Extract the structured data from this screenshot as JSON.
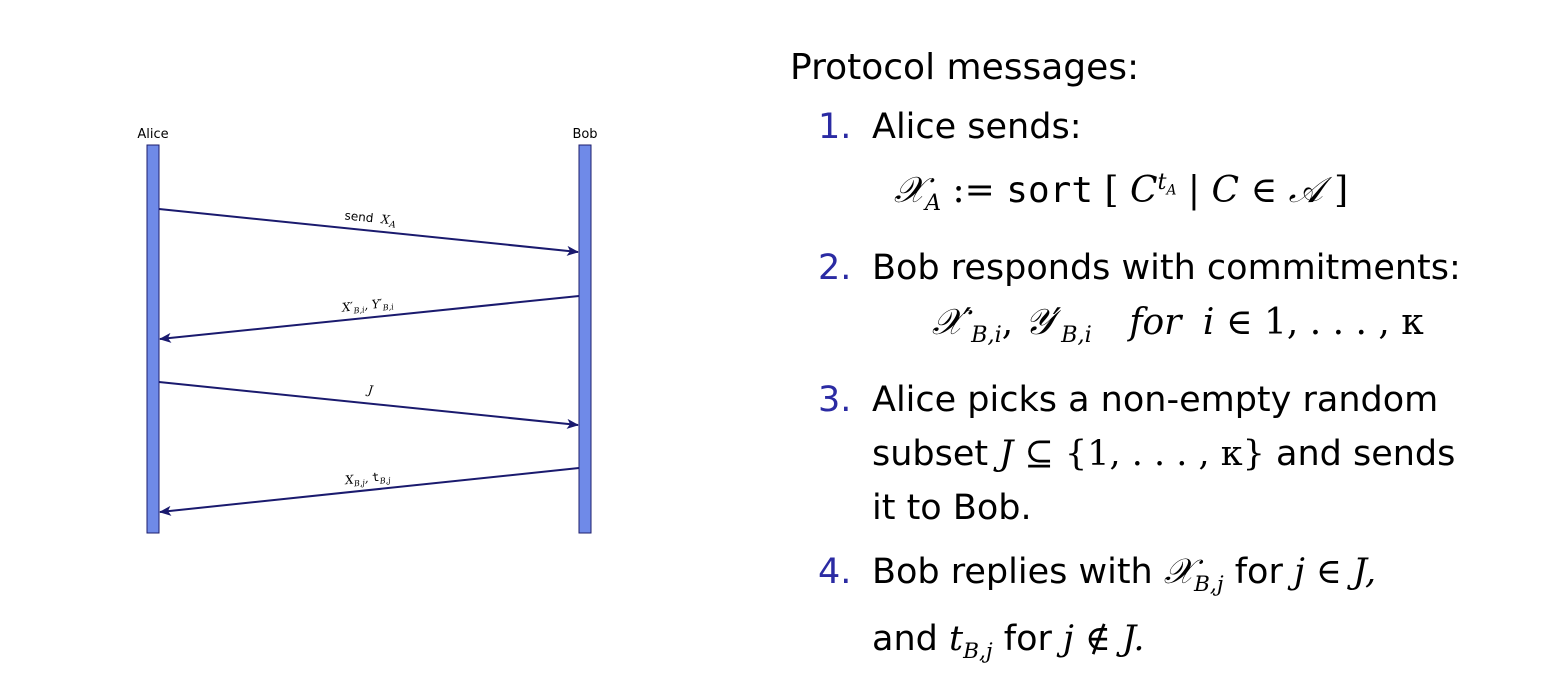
{
  "diagram": {
    "left_actor": "Alice",
    "right_actor": "Bob",
    "colors": {
      "lifeline": "#6f8ae8",
      "lifeline_border": "#1d1d6b",
      "arrow": "#1a1a6e"
    },
    "messages": [
      {
        "label_main": "send",
        "label_sym": "X",
        "label_sub": "A"
      },
      {
        "label_sym1": "X′",
        "label_sub1": "B,i",
        "label_sym2": "Y′",
        "label_sub2": "B,i"
      },
      {
        "label_sym": "J"
      },
      {
        "label_sym": "X",
        "label_sub": "B,j",
        "label_sym2": "t",
        "label_sub2": "B,j"
      }
    ]
  },
  "panel": {
    "heading": "Protocol messages:",
    "accent_color": "#2b2ba3",
    "items": [
      {
        "number": "1.",
        "text": "Alice sends:",
        "formula": {
          "lhs": "𝒳",
          "lhs_sub": "A",
          "assign": ":=",
          "fn": "sort",
          "lbr": "[",
          "c": "C",
          "sup": "t",
          "sup_sub": "A",
          "bar": "|",
          "c2": "C",
          "in": "∈",
          "set": "𝒜",
          "rbr": "]"
        }
      },
      {
        "number": "2.",
        "text": "Bob responds with commitments:",
        "formula": {
          "x": "𝒳′",
          "x_sub": "B,i",
          "comma": ",",
          "y": "𝒴′",
          "y_sub": "B,i",
          "for": "for",
          "i": "i",
          "in": "∈",
          "range": "1, . . . , κ"
        }
      },
      {
        "number": "3.",
        "line1": "Alice picks a non-empty random",
        "subset": "subset",
        "J": "J",
        "subseteq": "⊆",
        "set": "{1, . . . , κ}",
        "and_sends": "and sends",
        "line3": "it to Bob."
      },
      {
        "number": "4.",
        "replies": "Bob replies with",
        "x": "𝒳",
        "x_sub": "B,j",
        "for1": "for",
        "j1": "j",
        "in": "∈",
        "J1": "J,",
        "and": "and",
        "t": "t",
        "t_sub": "B,j",
        "for2": "for",
        "j2": "j",
        "notin": "∉",
        "J2": "J."
      }
    ]
  }
}
